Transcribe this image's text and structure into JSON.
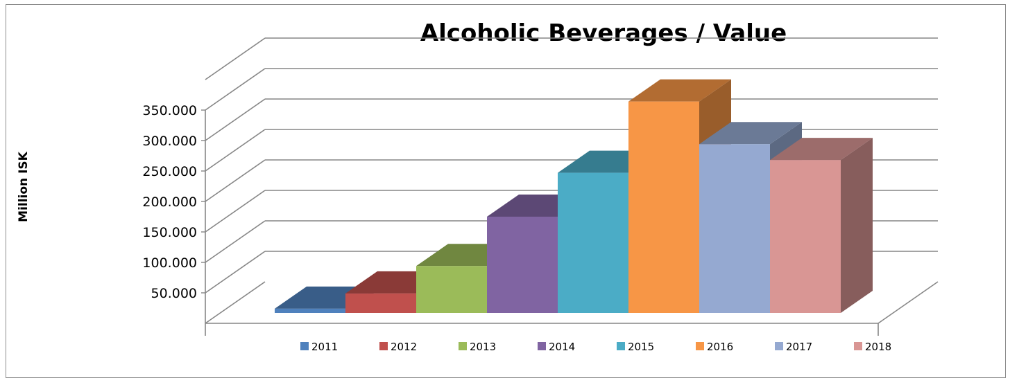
{
  "chart_data": {
    "type": "bar",
    "title": "Alcoholic Beverages / Value",
    "ylabel": "Million ISK",
    "xlabel": "",
    "ylim": [
      0,
      400000
    ],
    "yticks": [
      50000,
      100000,
      150000,
      200000,
      250000,
      300000,
      350000
    ],
    "ytick_labels": [
      "50.000",
      "100.000",
      "150.000",
      "200.000",
      "250.000",
      "300.000",
      "350.000"
    ],
    "grid": true,
    "three_d": true,
    "legend_position": "bottom",
    "series": [
      {
        "name": "2011",
        "value": 7000,
        "color": "#4F81BD"
      },
      {
        "name": "2012",
        "value": 32000,
        "color": "#C0504D"
      },
      {
        "name": "2013",
        "value": 77000,
        "color": "#9BBB59"
      },
      {
        "name": "2014",
        "value": 158000,
        "color": "#8064A2"
      },
      {
        "name": "2015",
        "value": 230000,
        "color": "#4BACC6"
      },
      {
        "name": "2016",
        "value": 347000,
        "color": "#F79646"
      },
      {
        "name": "2017",
        "value": 277000,
        "color": "#95A9D1"
      },
      {
        "name": "2018",
        "value": 251000,
        "color": "#D99694"
      }
    ]
  }
}
